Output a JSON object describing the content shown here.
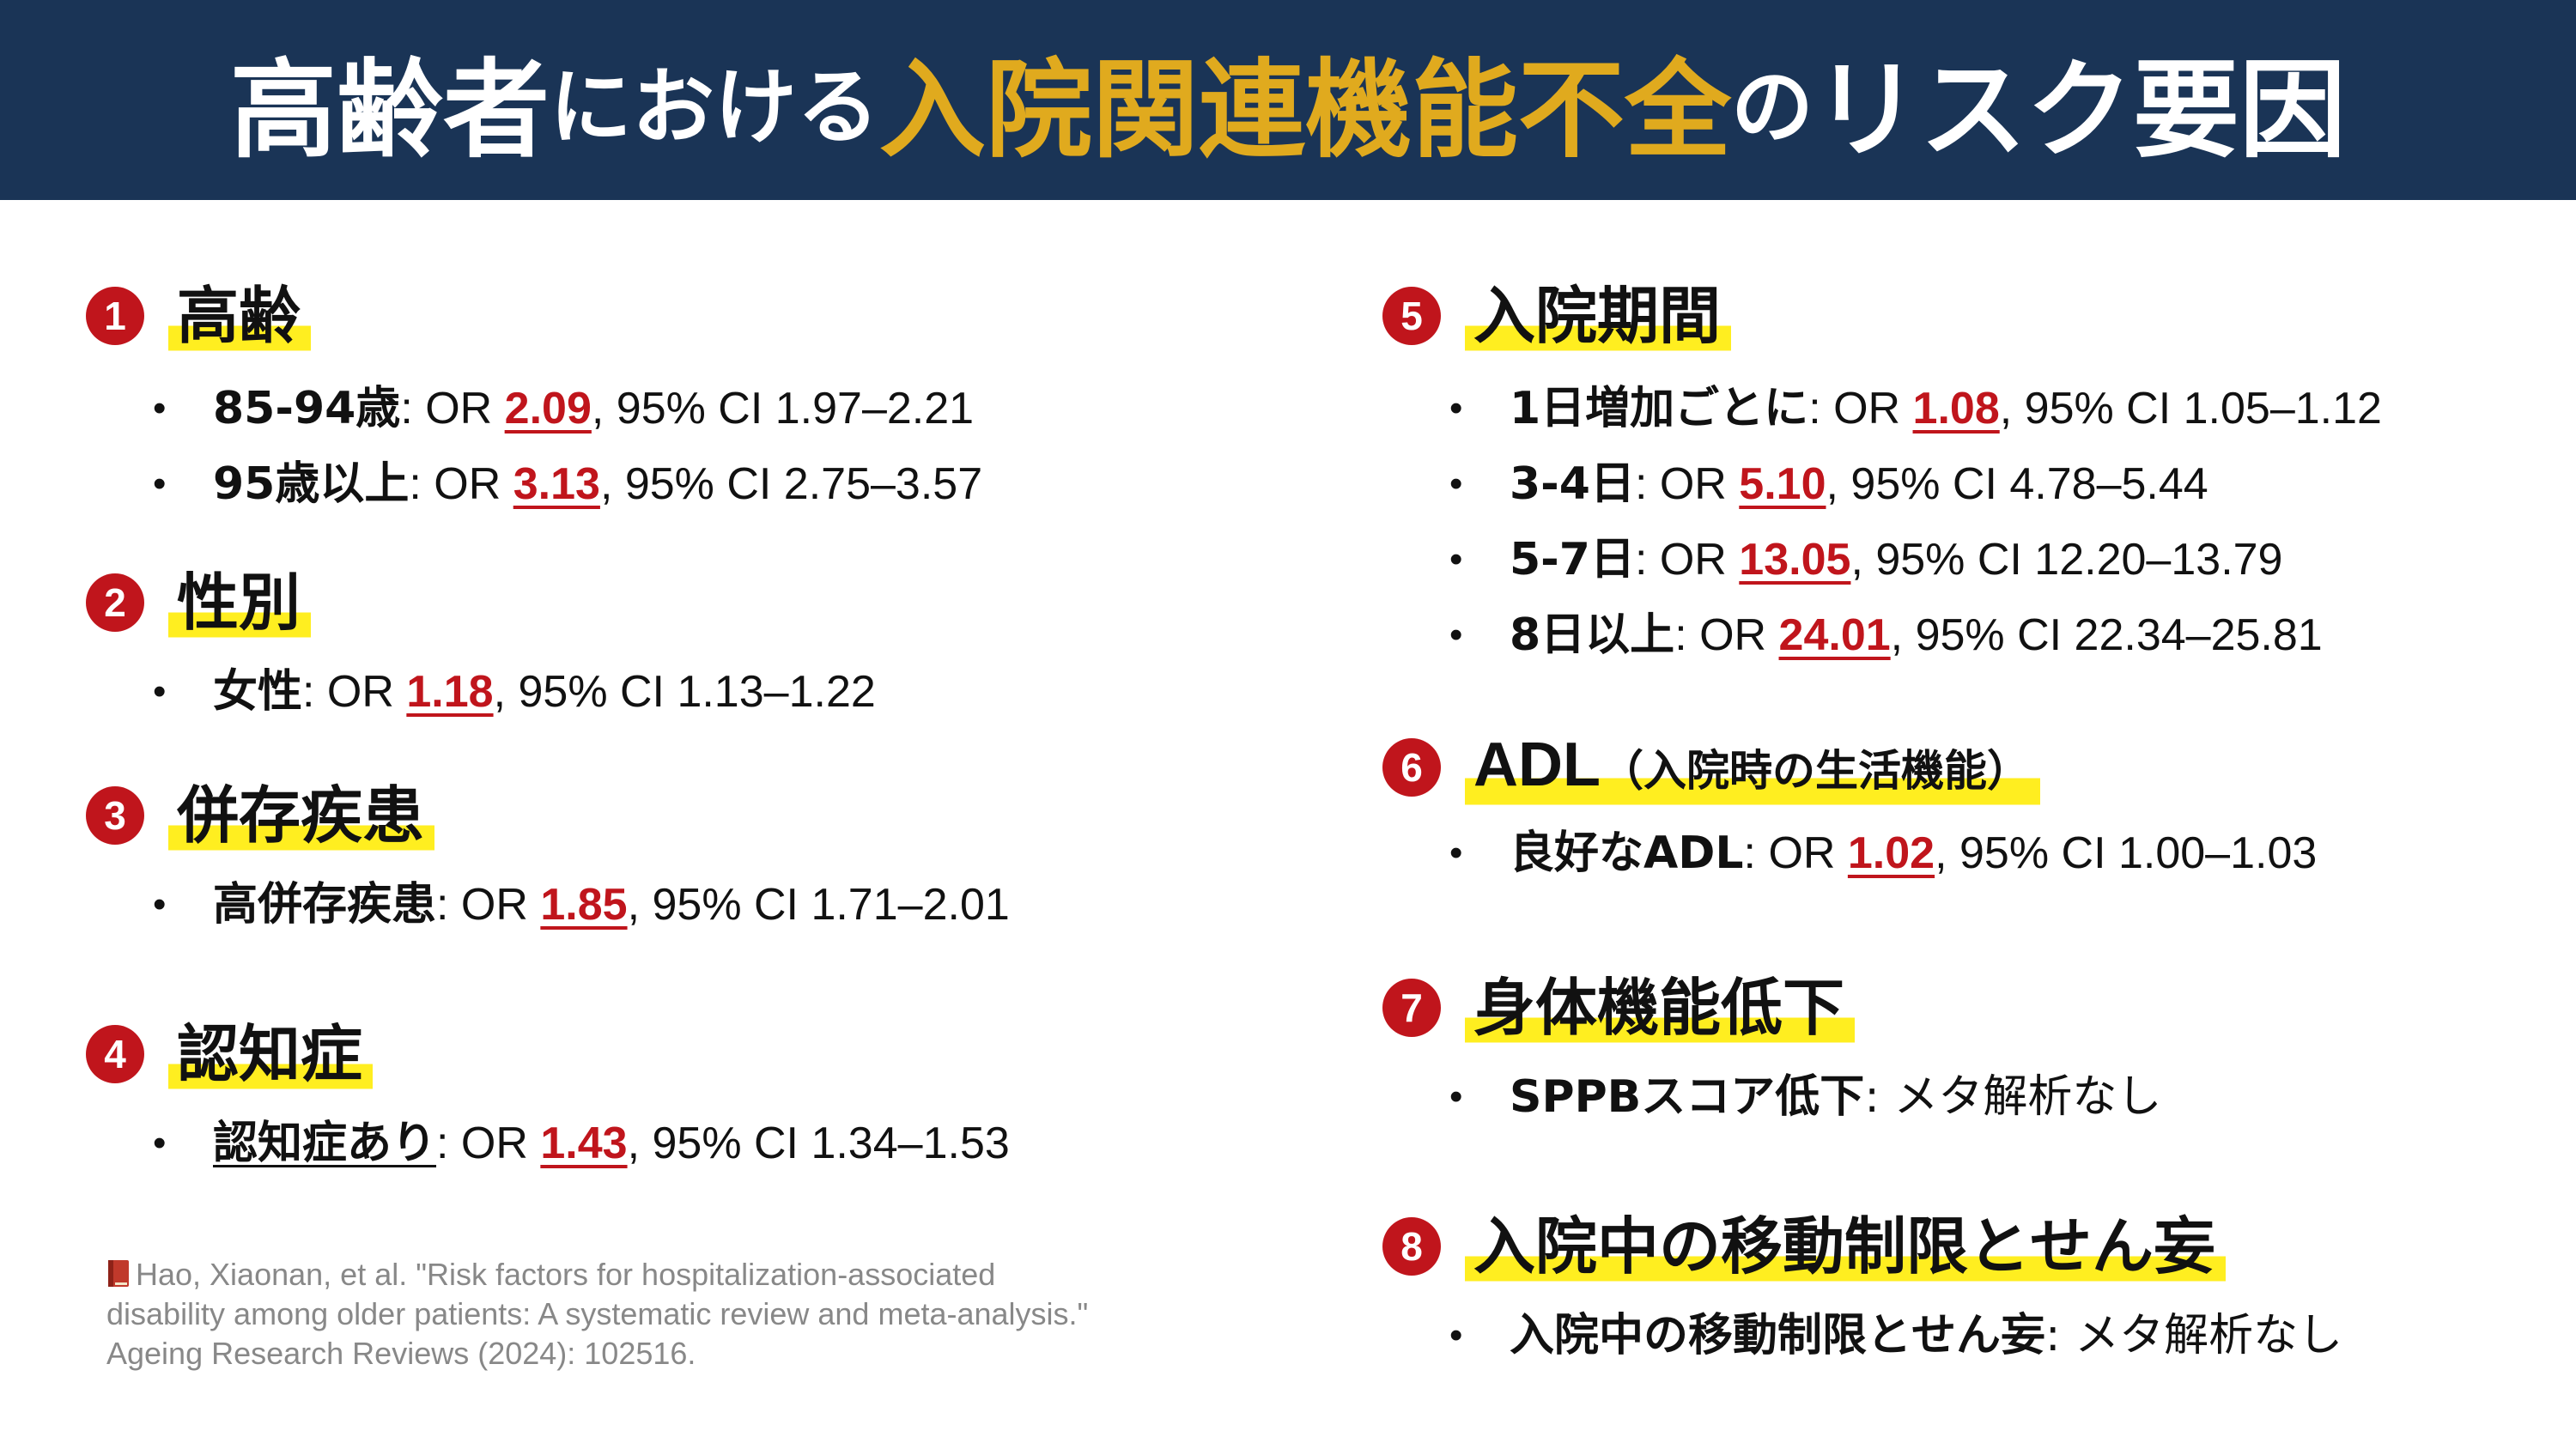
{
  "title": {
    "part1": "高齢者",
    "part2": "における",
    "part3": "入院関連機能不全",
    "part4": "の",
    "part5": "リスク要因"
  },
  "colors": {
    "header_bg": "#1a3456",
    "title_accent": "#e0aa1e",
    "badge": "#c0151c",
    "highlight": "#ffee20",
    "or_value": "#c0151c"
  },
  "left_sections": [
    {
      "number": "1",
      "heading": "高齢",
      "items": [
        {
          "label": "85-94歳",
          "pre": ": OR ",
          "or": "2.09",
          "ci": ", 95% CI 1.97–2.21"
        },
        {
          "label": "95歳以上",
          "pre": ": OR ",
          "or": "3.13",
          "ci": ", 95% CI 2.75–3.57"
        }
      ]
    },
    {
      "number": "2",
      "heading": "性別",
      "items": [
        {
          "label": "女性",
          "pre": ": OR ",
          "or": "1.18",
          "ci": ", 95% CI 1.13–1.22"
        }
      ]
    },
    {
      "number": "3",
      "heading": "併存疾患",
      "items": [
        {
          "label": "高併存疾患",
          "pre": ": OR ",
          "or": "1.85",
          "ci": ", 95% CI 1.71–2.01"
        }
      ]
    },
    {
      "number": "4",
      "heading": "認知症",
      "items": [
        {
          "label": "認知症あり",
          "pre": ": OR ",
          "or": "1.43",
          "ci": ", 95% CI 1.34–1.53"
        }
      ]
    }
  ],
  "right_sections": [
    {
      "number": "5",
      "heading": "入院期間",
      "items": [
        {
          "label": "1日増加ごとに",
          "pre": ": OR ",
          "or": "1.08",
          "ci": ", 95% CI 1.05–1.12"
        },
        {
          "label": "3-4日",
          "pre": ": OR ",
          "or": "5.10",
          "ci": ", 95% CI 4.78–5.44"
        },
        {
          "label": "5-7日",
          "pre": ": OR ",
          "or": "13.05",
          "ci": ", 95% CI 12.20–13.79"
        },
        {
          "label": "8日以上",
          "pre": ": OR ",
          "or": "24.01",
          "ci": ", 95% CI 22.34–25.81"
        }
      ]
    },
    {
      "number": "6",
      "heading": "ADL",
      "heading_sub": "（入院時の生活機能）",
      "items": [
        {
          "label": "良好なADL",
          "pre": ": OR ",
          "or": "1.02",
          "ci": ", 95% CI 1.00–1.03"
        }
      ]
    },
    {
      "number": "7",
      "heading": "身体機能低下",
      "items": [
        {
          "label": "SPPBスコア低下",
          "note": ": メタ解析なし"
        }
      ]
    },
    {
      "number": "8",
      "heading": "入院中の移動制限とせん妄",
      "items": [
        {
          "label": "入院中の移動制限とせん妄",
          "note": ": メタ解析なし"
        }
      ]
    }
  ],
  "citation": {
    "icon": "book-icon",
    "line1": "Hao, Xiaonan, et al. \"Risk factors for hospitalization-associated",
    "line2": "disability among older patients: A systematic review and meta-analysis.\"",
    "line3": "Ageing Research Reviews (2024): 102516."
  }
}
